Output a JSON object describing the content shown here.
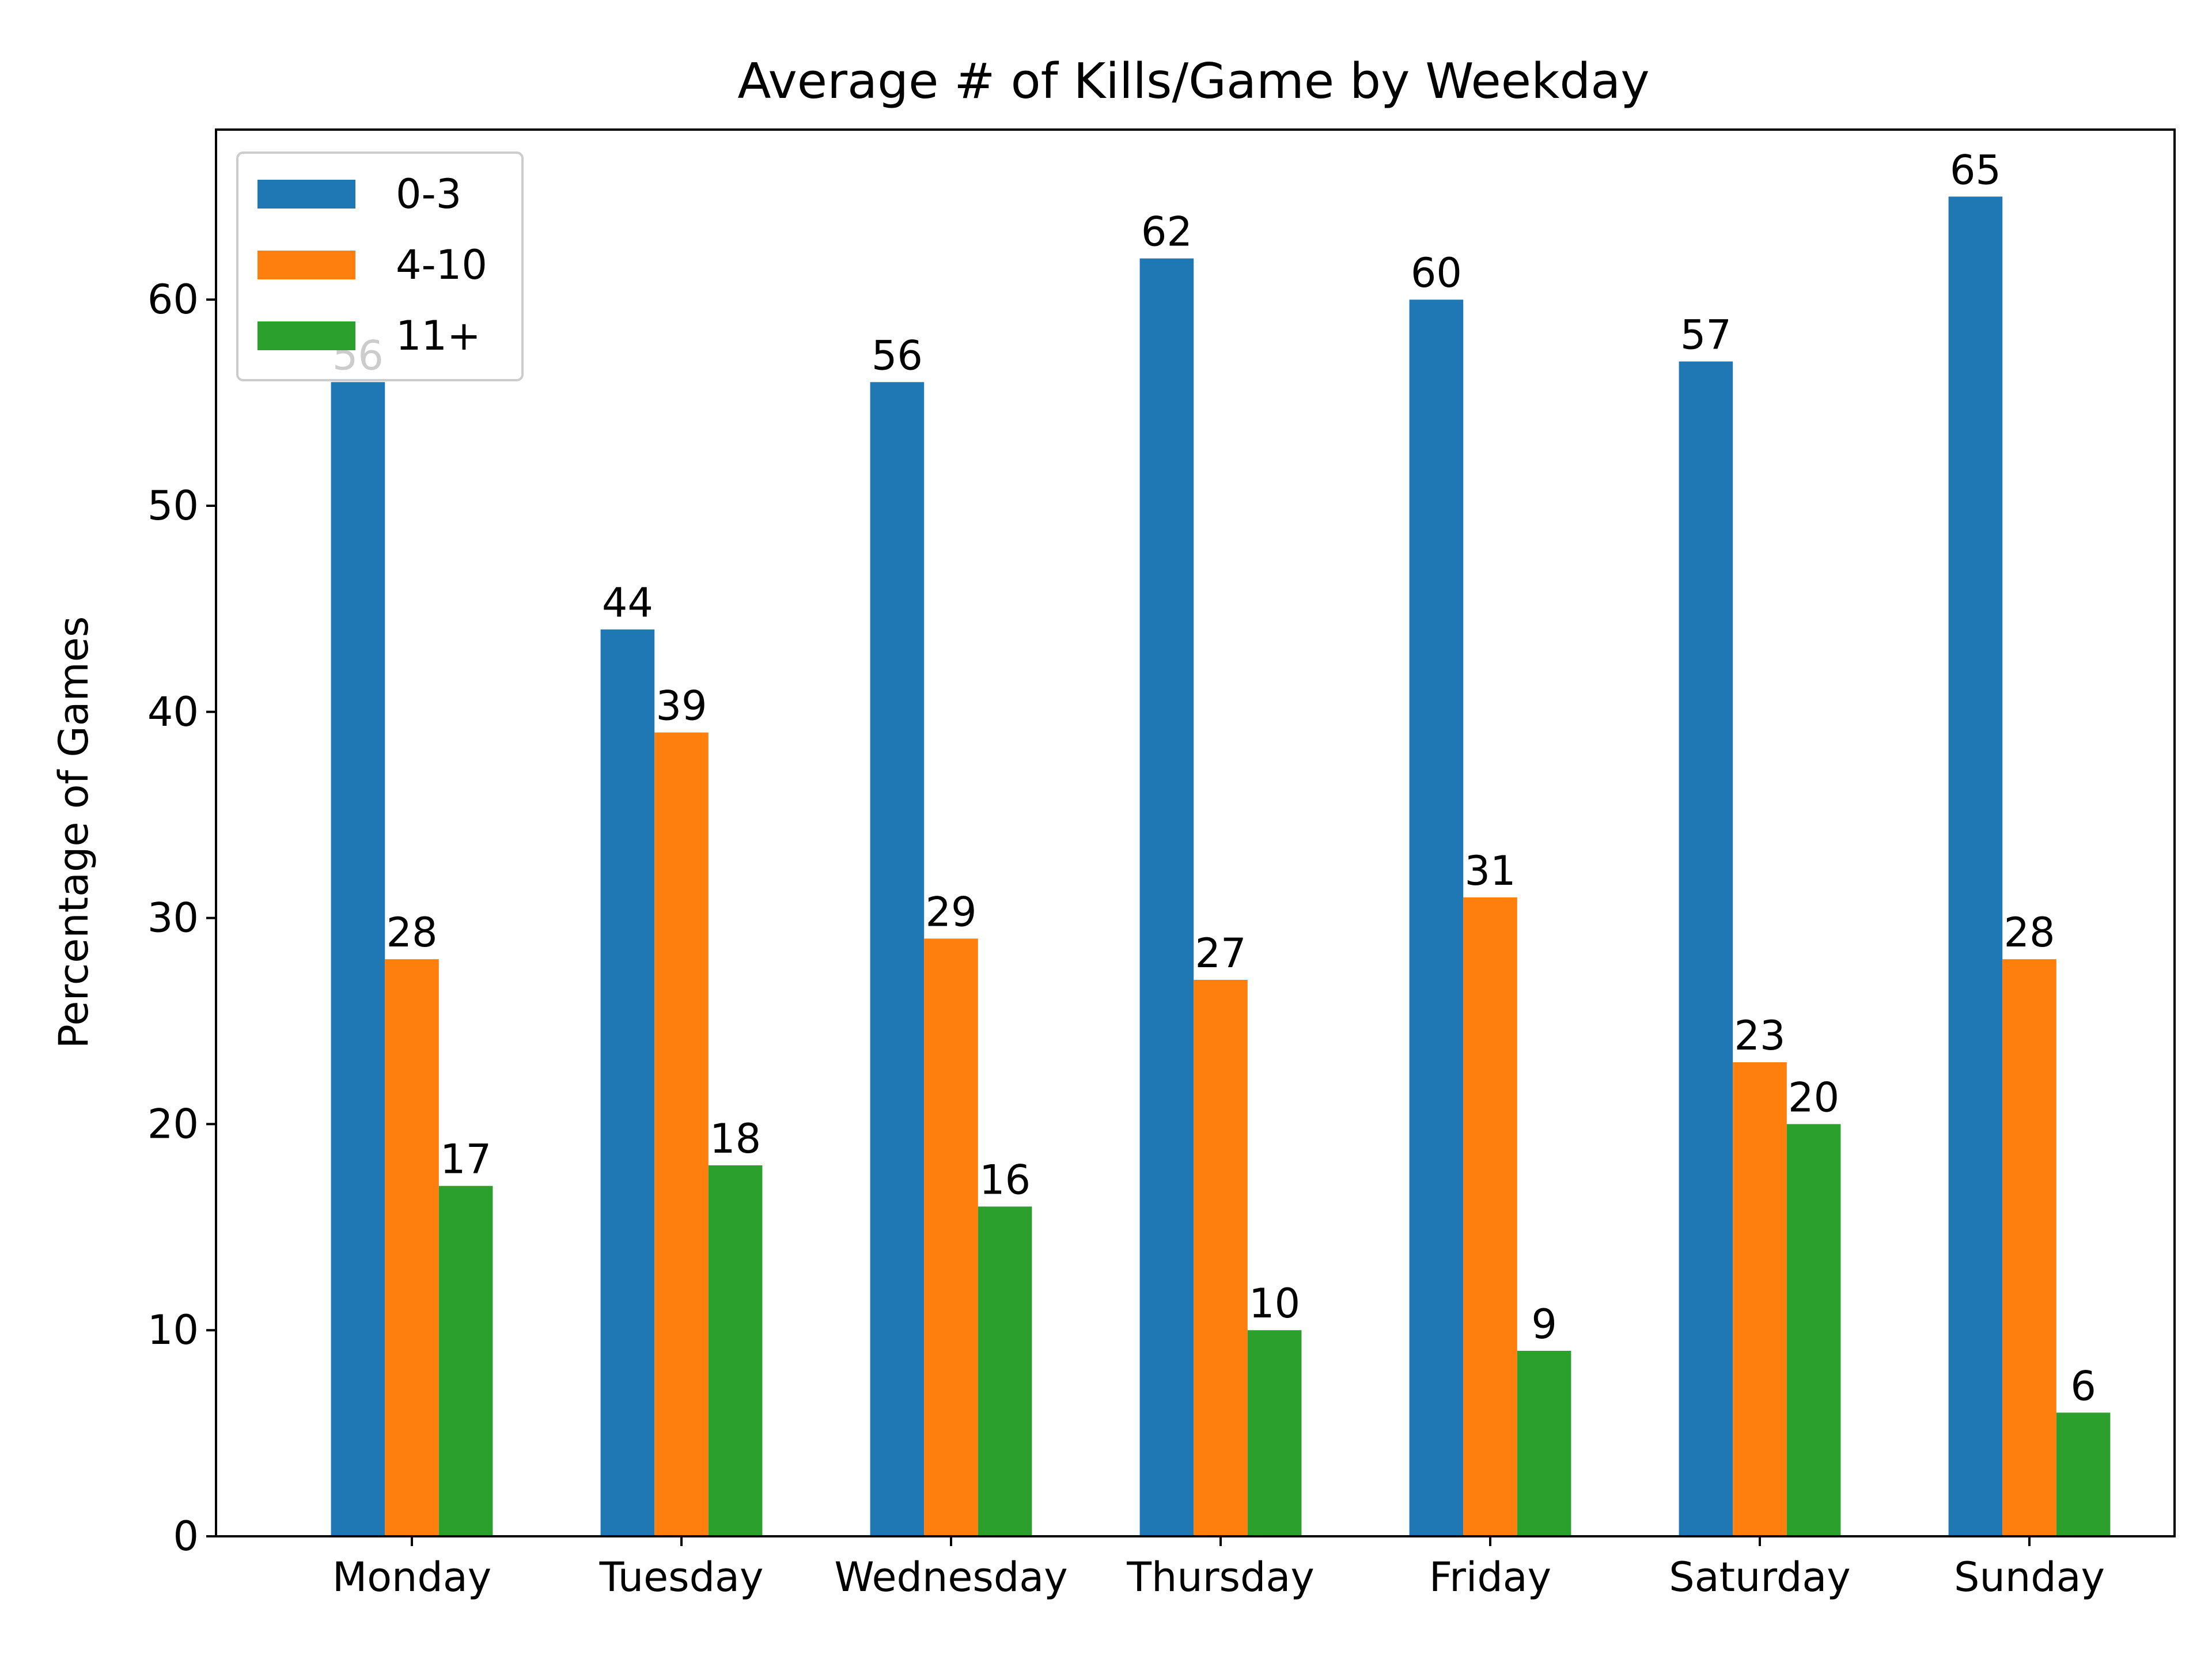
{
  "chart_data": {
    "type": "bar",
    "title": "Average # of Kills/Game by Weekday",
    "xlabel": "",
    "ylabel": "Percentage of Games",
    "categories": [
      "Monday",
      "Tuesday",
      "Wednesday",
      "Thursday",
      "Friday",
      "Saturday",
      "Sunday"
    ],
    "series": [
      {
        "name": "0-3",
        "color": "#1f77b4",
        "values": [
          56,
          44,
          56,
          62,
          60,
          57,
          65
        ]
      },
      {
        "name": "4-10",
        "color": "#ff7f0e",
        "values": [
          28,
          39,
          29,
          27,
          31,
          23,
          28
        ]
      },
      {
        "name": "11+",
        "color": "#2ca02c",
        "values": [
          17,
          18,
          16,
          10,
          9,
          20,
          6
        ]
      }
    ],
    "ylim": [
      0,
      68.25
    ],
    "yticks": [
      0,
      10,
      20,
      30,
      40,
      50,
      60
    ],
    "grid": false,
    "legend_position": "top-left"
  }
}
